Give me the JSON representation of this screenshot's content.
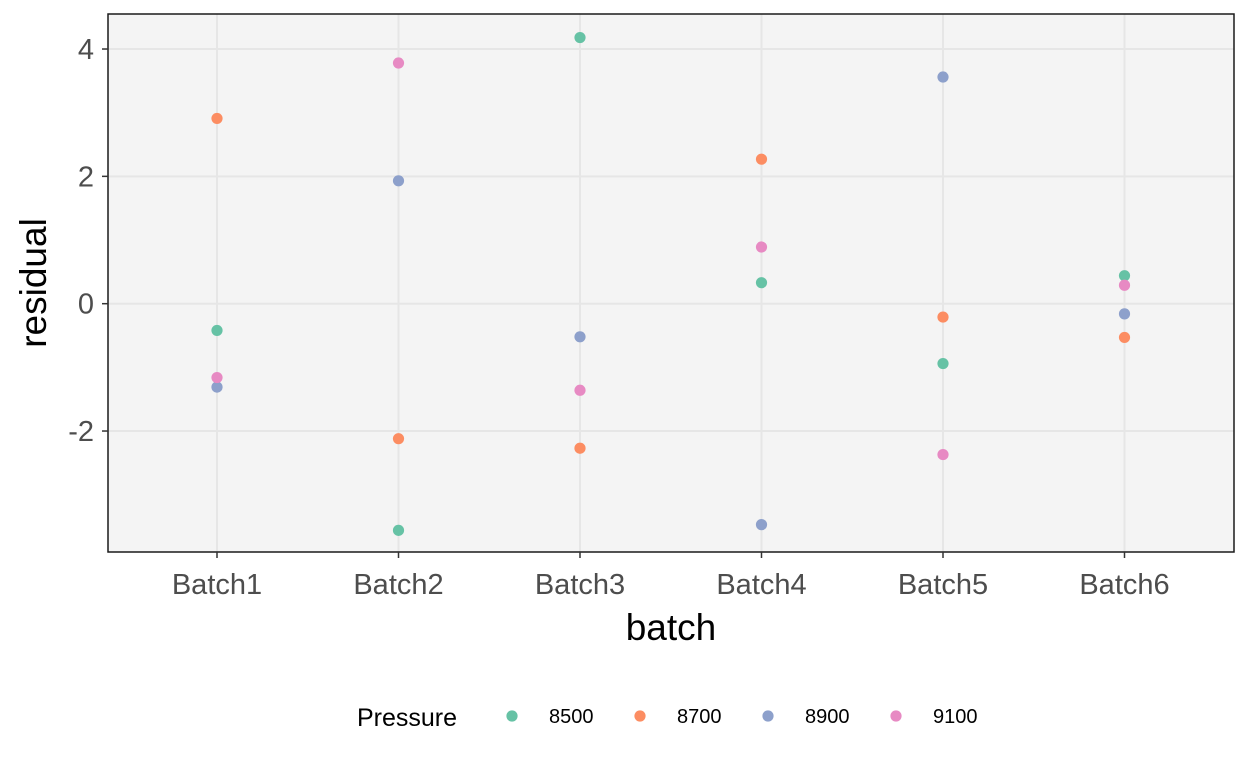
{
  "chart_data": {
    "type": "scatter",
    "xlabel": "batch",
    "ylabel": "residual",
    "categories": [
      "Batch1",
      "Batch2",
      "Batch3",
      "Batch4",
      "Batch5",
      "Batch6"
    ],
    "ylim": [
      -3.9,
      4.55
    ],
    "yticks": [
      -2,
      0,
      2,
      4
    ],
    "ytick_labels": [
      "-2",
      "0",
      "2",
      "4"
    ],
    "grid": true,
    "panel_background": "#f4f4f4",
    "grid_color": "#e6e6e6",
    "legend": {
      "title": "Pressure",
      "position": "bottom"
    },
    "series": [
      {
        "name": "8500",
        "color": "#66c2a5",
        "values": [
          -0.42,
          -3.56,
          4.18,
          0.33,
          -0.94,
          0.44
        ]
      },
      {
        "name": "8700",
        "color": "#fc8d62",
        "values": [
          2.91,
          -2.12,
          -2.27,
          2.27,
          -0.21,
          -0.53
        ]
      },
      {
        "name": "8900",
        "color": "#8da0cb",
        "values": [
          -1.31,
          1.93,
          -0.52,
          -3.47,
          3.56,
          -0.16
        ]
      },
      {
        "name": "9100",
        "color": "#e78ac3",
        "values": [
          -1.16,
          3.78,
          -1.36,
          0.89,
          -2.37,
          0.29
        ]
      }
    ]
  }
}
